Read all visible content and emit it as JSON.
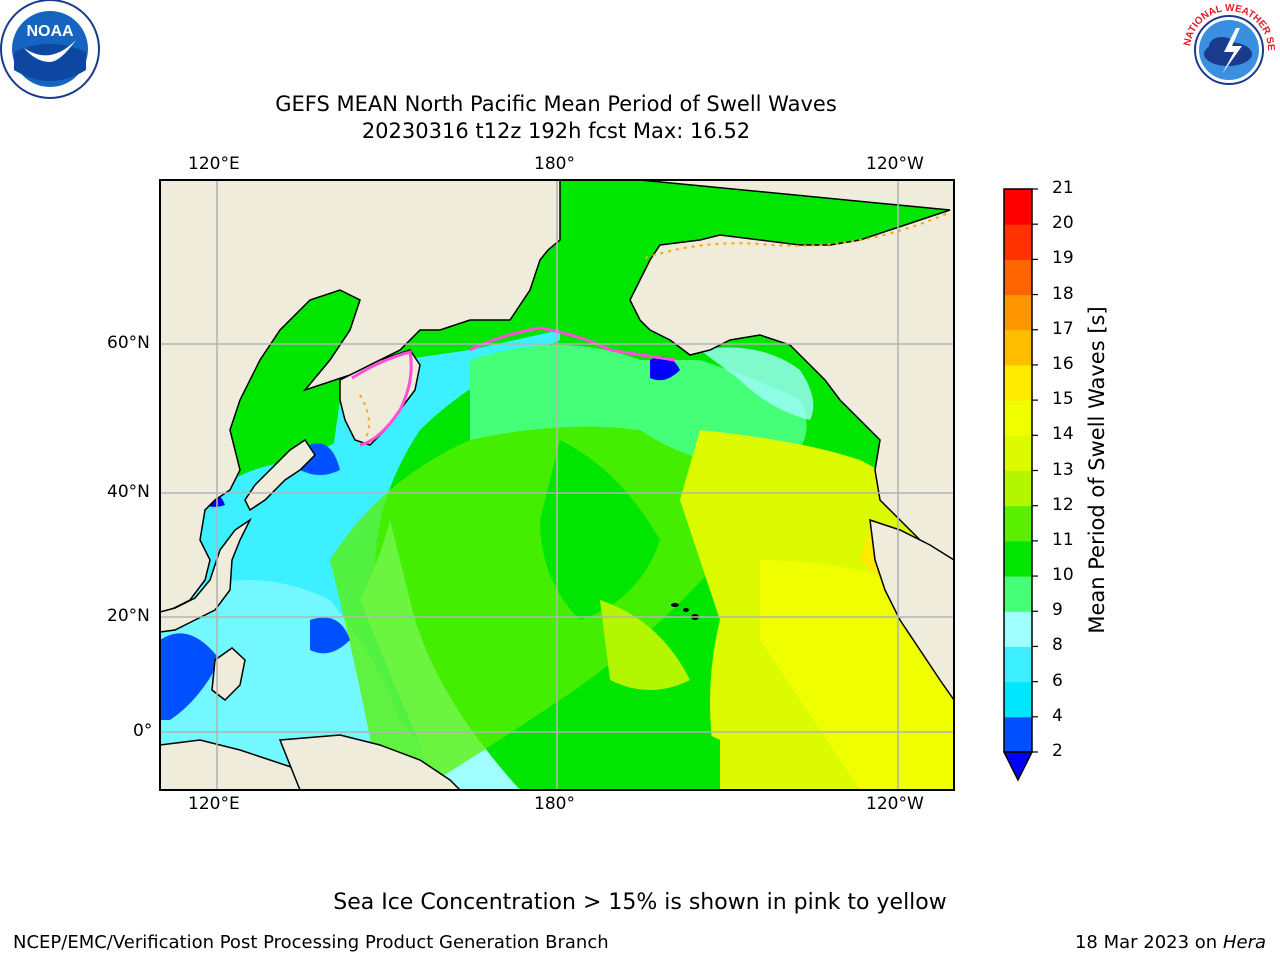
{
  "title": {
    "line1": "GEFS MEAN North Pacific Mean Period of Swell Waves",
    "line2": "20230316 t12z 192h fcst   Max: 16.52"
  },
  "logos": {
    "noara_text": "NOAA",
    "nws_text": "NATIONAL WEATHER SERVICE"
  },
  "map": {
    "top_lon_labels": [
      "120°E",
      "180°",
      "120°W"
    ],
    "bottom_lon_labels": [
      "120°E",
      "180°",
      "120°W"
    ],
    "lat_labels": [
      "60°N",
      "40°N",
      "20°N",
      "0°"
    ],
    "colors": {
      "land": "#efecdc",
      "frame": "#000000",
      "grid": "#b4b4b4"
    }
  },
  "colorbar": {
    "label": "Mean Period of Swell Waves [s]",
    "ticks": [
      "2",
      "4",
      "6",
      "8",
      "9",
      "10",
      "11",
      "12",
      "13",
      "14",
      "15",
      "16",
      "17",
      "18",
      "19",
      "20",
      "21"
    ],
    "colors": [
      "#0050ff",
      "#00e6ff",
      "#3cf0ff",
      "#a0ffff",
      "#46ff78",
      "#00e600",
      "#5af000",
      "#b4f500",
      "#dcfa00",
      "#f0ff00",
      "#ffeb00",
      "#ffbe00",
      "#ff9600",
      "#ff6400",
      "#ff3200",
      "#ff0000"
    ],
    "under_color": "#0000ff"
  },
  "caption": "Sea Ice Concentration > 15% is shown in pink to yellow",
  "footer": {
    "left": "NCEP/EMC/Verification Post Processing Product Generation Branch",
    "right_date": "18 Mar 2023 on",
    "right_host": "Hera"
  }
}
